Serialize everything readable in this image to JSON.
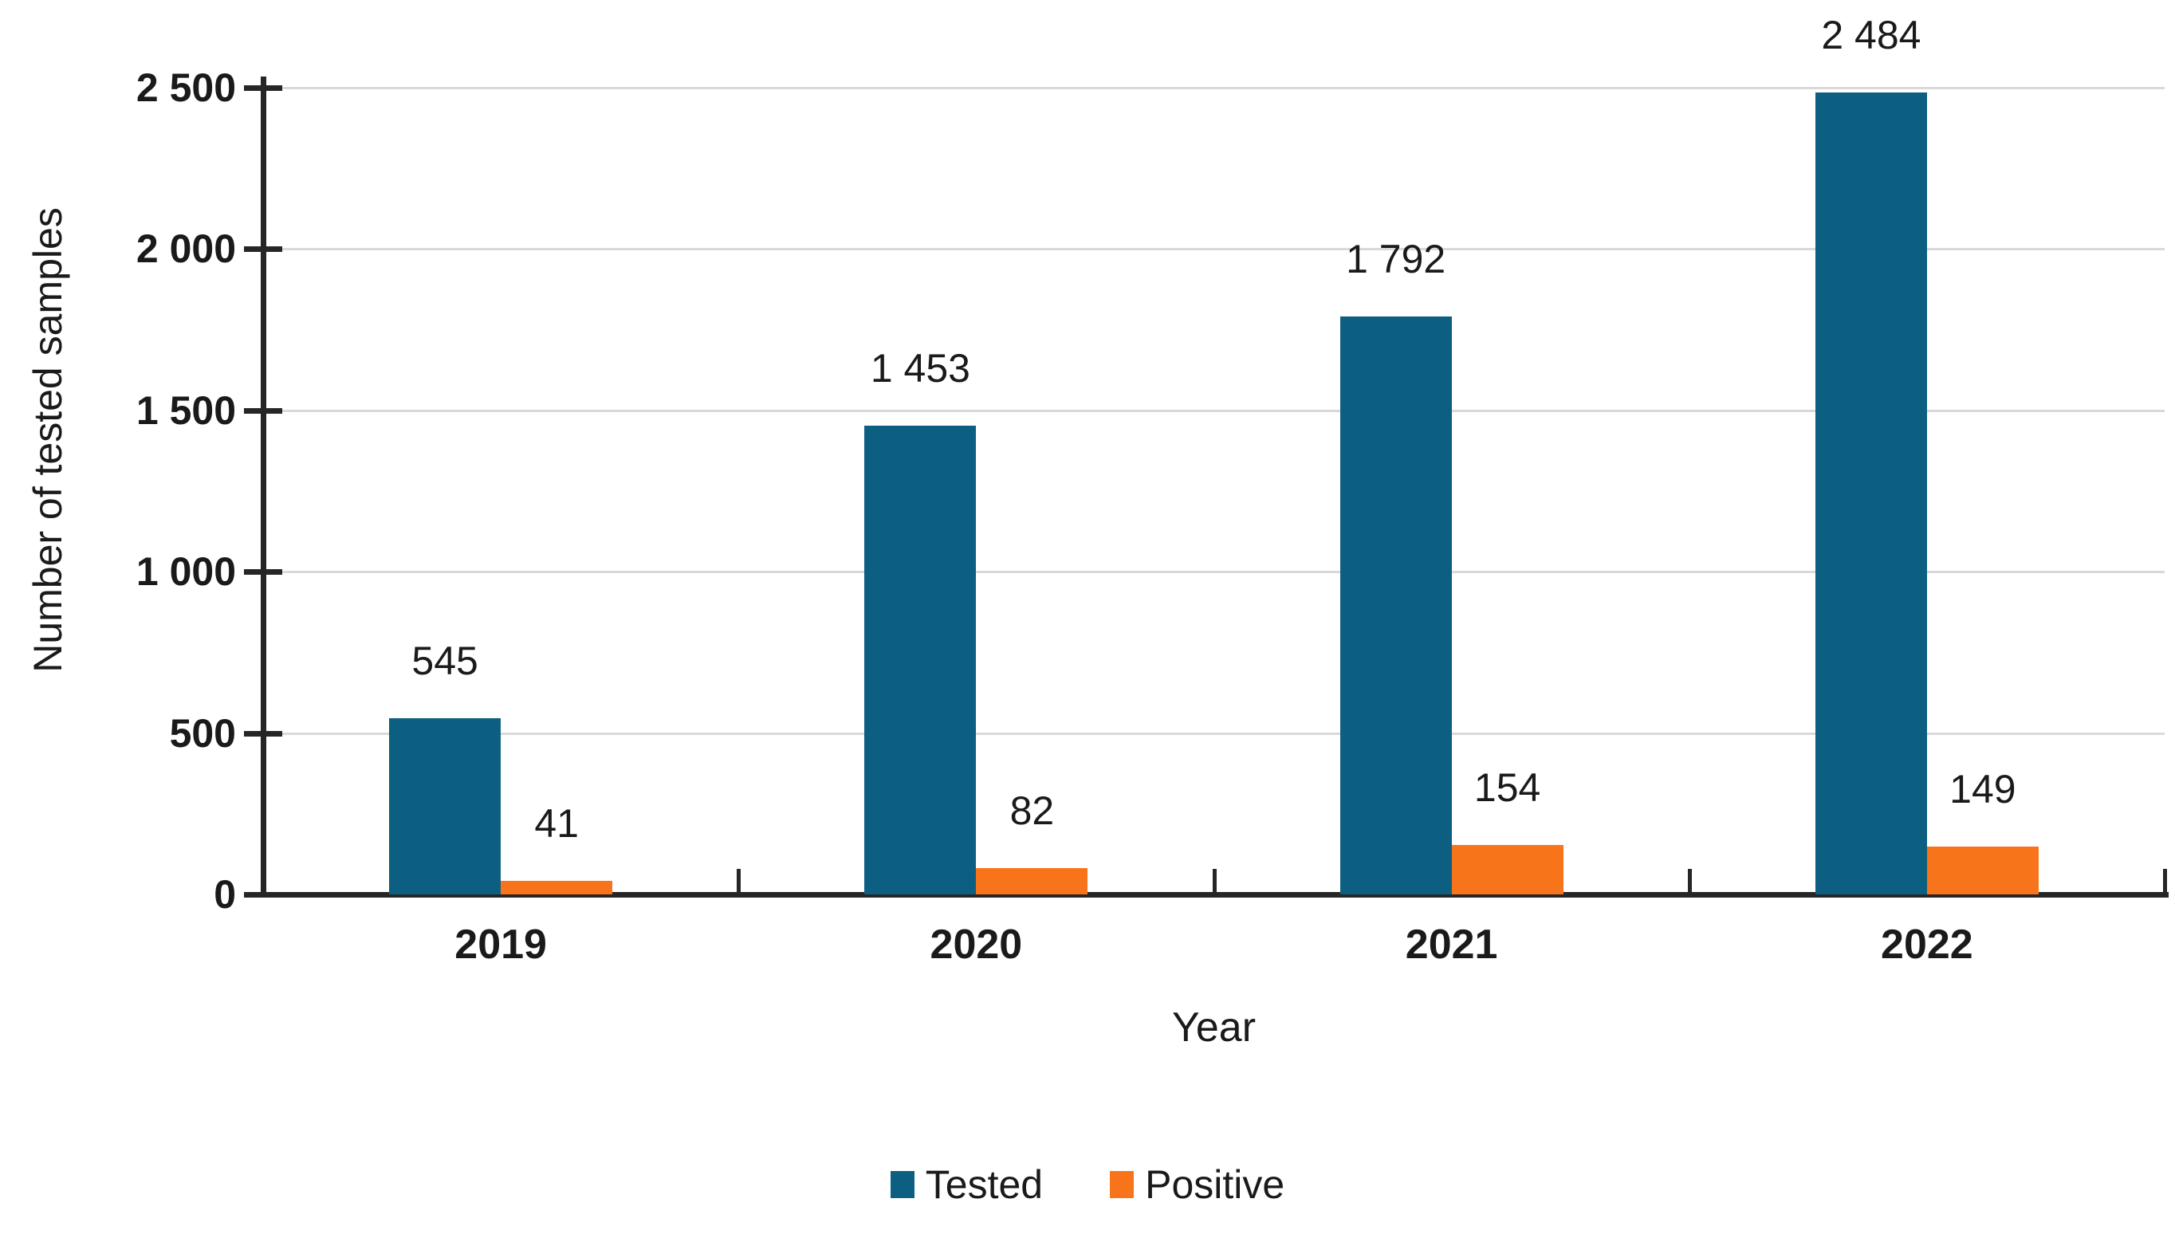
{
  "chart_data": {
    "type": "bar",
    "title": "",
    "categories": [
      "2019",
      "2020",
      "2021",
      "2022"
    ],
    "series": [
      {
        "name": "Tested",
        "color": "#0c5f80",
        "values": [
          545,
          1453,
          1792,
          2484
        ],
        "labels": [
          "545",
          "1 453",
          "1 792",
          "2 484"
        ]
      },
      {
        "name": "Positive",
        "color": "#f8741b",
        "values": [
          41,
          82,
          154,
          149
        ],
        "labels": [
          "41",
          "82",
          "154",
          "149"
        ]
      }
    ],
    "xlabel": "Year",
    "ylabel": "Number of tested samples",
    "ylim": [
      0,
      2500
    ],
    "yticks": [
      {
        "value": 0,
        "label": "0"
      },
      {
        "value": 500,
        "label": "500"
      },
      {
        "value": 1000,
        "label": "1 000"
      },
      {
        "value": 1500,
        "label": "1 500"
      },
      {
        "value": 2000,
        "label": "2 000"
      },
      {
        "value": 2500,
        "label": "2 500"
      }
    ],
    "grid": true,
    "legend_position": "bottom",
    "colors": {
      "grid": "#d9d9d9",
      "axis": "#262626",
      "text": "#1a1a1a"
    }
  }
}
